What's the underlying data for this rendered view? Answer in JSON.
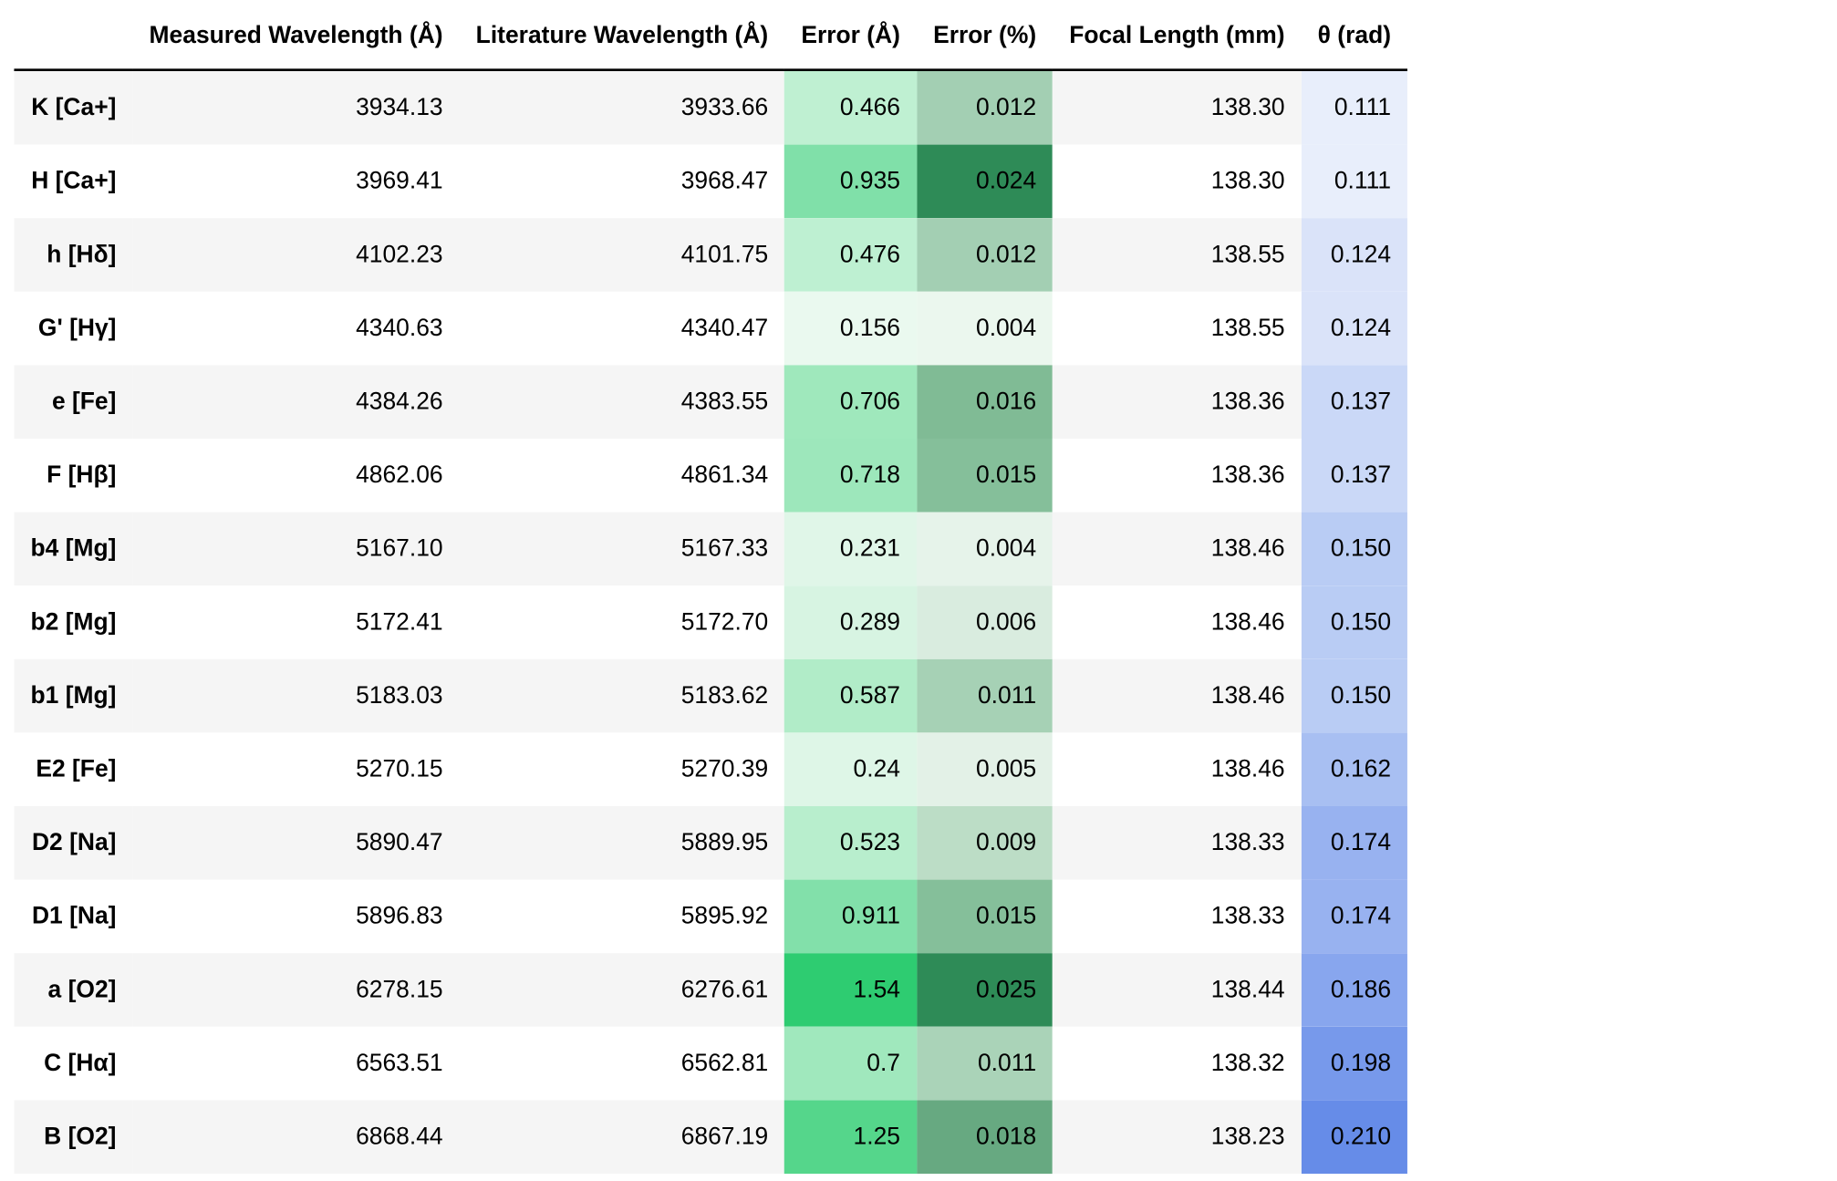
{
  "table": {
    "headers": [
      "",
      "Measured Wavelength (Å)",
      "Literature Wavelength (Å)",
      "Error (Å)",
      "Error (%)",
      "Focal Length (mm)",
      "θ (rad)"
    ],
    "rows": [
      {
        "label": "K [Ca+]",
        "measured": "3934.13",
        "literature": "3933.66",
        "error_a": "0.466",
        "error_pct": "0.012",
        "focal_length": "138.30",
        "theta": "0.111",
        "error_a_bg": "#bff0d2",
        "error_pct_bg": "#a3cfb3",
        "theta_bg": "#e8eefb"
      },
      {
        "label": "H [Ca+]",
        "measured": "3969.41",
        "literature": "3968.47",
        "error_a": "0.935",
        "error_pct": "0.024",
        "focal_length": "138.30",
        "theta": "0.111",
        "error_a_bg": "#80e0a9",
        "error_pct_bg": "#2e8b57",
        "theta_bg": "#e8eefb"
      },
      {
        "label": "h [Hδ]",
        "measured": "4102.23",
        "literature": "4101.75",
        "error_a": "0.476",
        "error_pct": "0.012",
        "focal_length": "138.55",
        "theta": "0.124",
        "error_a_bg": "#bef0d2",
        "error_pct_bg": "#a3cfb3",
        "theta_bg": "#dae3f9"
      },
      {
        "label": "G' [Hγ]",
        "measured": "4340.63",
        "literature": "4340.47",
        "error_a": "0.156",
        "error_pct": "0.004",
        "focal_length": "138.55",
        "theta": "0.124",
        "error_a_bg": "#eaf9ef",
        "error_pct_bg": "#ebf7ee",
        "theta_bg": "#dae3f9"
      },
      {
        "label": "e [Fe]",
        "measured": "4384.26",
        "literature": "4383.55",
        "error_a": "0.706",
        "error_pct": "0.016",
        "focal_length": "138.36",
        "theta": "0.137",
        "error_a_bg": "#9fe8bc",
        "error_pct_bg": "#80bb95",
        "theta_bg": "#cad8f7"
      },
      {
        "label": "F [Hβ]",
        "measured": "4862.06",
        "literature": "4861.34",
        "error_a": "0.718",
        "error_pct": "0.015",
        "focal_length": "138.36",
        "theta": "0.137",
        "error_a_bg": "#9de7bb",
        "error_pct_bg": "#85bf9a",
        "theta_bg": "#cad8f7"
      },
      {
        "label": "b4 [Mg]",
        "measured": "5167.10",
        "literature": "5167.33",
        "error_a": "0.231",
        "error_pct": "0.004",
        "focal_length": "138.46",
        "theta": "0.150",
        "error_a_bg": "#e0f6e8",
        "error_pct_bg": "#e6f3ea",
        "theta_bg": "#b9ccf4"
      },
      {
        "label": "b2 [Mg]",
        "measured": "5172.41",
        "literature": "5172.70",
        "error_a": "0.289",
        "error_pct": "0.006",
        "focal_length": "138.46",
        "theta": "0.150",
        "error_a_bg": "#d7f4e2",
        "error_pct_bg": "#d9ecdf",
        "theta_bg": "#b9ccf4"
      },
      {
        "label": "b1 [Mg]",
        "measured": "5183.03",
        "literature": "5183.62",
        "error_a": "0.587",
        "error_pct": "0.011",
        "focal_length": "138.46",
        "theta": "0.150",
        "error_a_bg": "#b1ecc8",
        "error_pct_bg": "#a6d1b5",
        "theta_bg": "#b9ccf4"
      },
      {
        "label": "E2 [Fe]",
        "measured": "5270.15",
        "literature": "5270.39",
        "error_a": "0.24",
        "error_pct": "0.005",
        "focal_length": "138.46",
        "theta": "0.162",
        "error_a_bg": "#def6e7",
        "error_pct_bg": "#e3f1e7",
        "theta_bg": "#a8bff2"
      },
      {
        "label": "D2 [Na]",
        "measured": "5890.47",
        "literature": "5889.95",
        "error_a": "0.523",
        "error_pct": "0.009",
        "focal_length": "138.33",
        "theta": "0.174",
        "error_a_bg": "#b8eecd",
        "error_pct_bg": "#bcddc6",
        "theta_bg": "#98b2f0"
      },
      {
        "label": "D1 [Na]",
        "measured": "5896.83",
        "literature": "5895.92",
        "error_a": "0.911",
        "error_pct": "0.015",
        "focal_length": "138.33",
        "theta": "0.174",
        "error_a_bg": "#82e0aa",
        "error_pct_bg": "#85bf9a",
        "theta_bg": "#98b2f0"
      },
      {
        "label": "a [O2]",
        "measured": "6278.15",
        "literature": "6276.61",
        "error_a": "1.54",
        "error_pct": "0.025",
        "focal_length": "138.44",
        "theta": "0.186",
        "error_a_bg": "#2ecc71",
        "error_pct_bg": "#2e8b57",
        "theta_bg": "#88a6ee"
      },
      {
        "label": "C [Hα]",
        "measured": "6563.51",
        "literature": "6562.81",
        "error_a": "0.7",
        "error_pct": "0.011",
        "focal_length": "138.32",
        "theta": "0.198",
        "error_a_bg": "#a0e8bd",
        "error_pct_bg": "#aad3b8",
        "theta_bg": "#7799eb"
      },
      {
        "label": "B [O2]",
        "measured": "6868.44",
        "literature": "6867.19",
        "error_a": "1.25",
        "error_pct": "0.018",
        "focal_length": "138.23",
        "theta": "0.210",
        "error_a_bg": "#55d68b",
        "error_pct_bg": "#67a981",
        "theta_bg": "#668ce8"
      }
    ]
  }
}
